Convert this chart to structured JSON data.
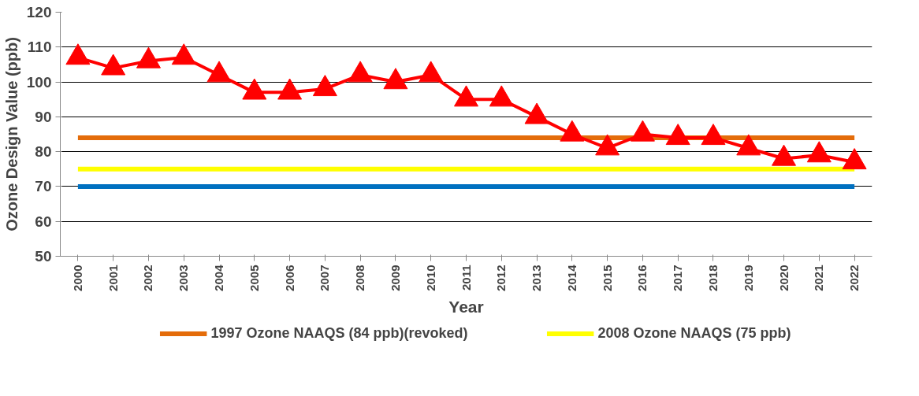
{
  "chart_data": {
    "type": "line",
    "xlabel": "Year",
    "ylabel": "Ozone Design Value (ppb)",
    "categories": [
      "2000",
      "2001",
      "2002",
      "2003",
      "2004",
      "2005",
      "2006",
      "2007",
      "2008",
      "2009",
      "2010",
      "2011",
      "2012",
      "2013",
      "2014",
      "2015",
      "2016",
      "2017",
      "2018",
      "2019",
      "2020",
      "2021",
      "2022"
    ],
    "series": [
      {
        "color": "#ff0000",
        "values": [
          107,
          104,
          106,
          107,
          102,
          97,
          97,
          98,
          102,
          100,
          102,
          95,
          95,
          90,
          85,
          81,
          85,
          84,
          84,
          81,
          78,
          79,
          77
        ]
      }
    ],
    "ref_lines": [
      {
        "axis": "y",
        "value": 84,
        "label": "1997 Ozone NAAQS (84 ppb)(revoked)",
        "color": "#e46c0a"
      },
      {
        "axis": "y",
        "value": 75,
        "label": "2008 Ozone NAAQS (75 ppb)",
        "color": "#ffff00"
      },
      {
        "axis": "y",
        "value": 70,
        "color": "#0070c0"
      }
    ],
    "ylim": [
      50,
      120
    ],
    "yticks": [
      50,
      60,
      70,
      80,
      90,
      100,
      110,
      120
    ],
    "grid": "y",
    "legend": "bottom",
    "marker": "triangle",
    "line_style": "solid"
  }
}
